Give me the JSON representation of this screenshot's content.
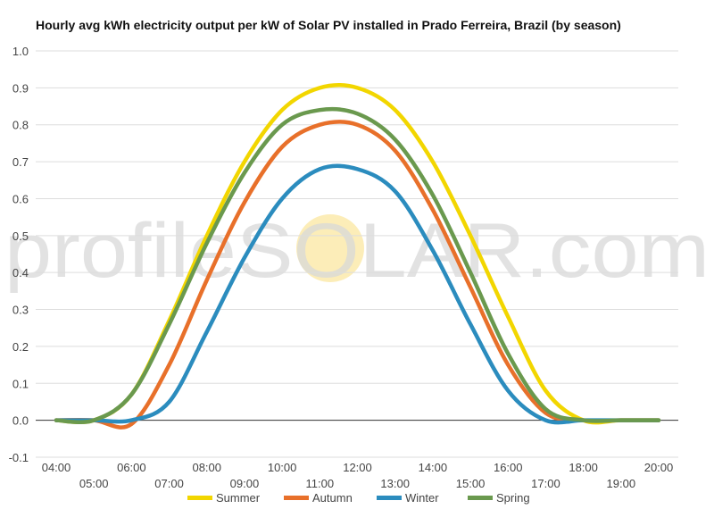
{
  "chart_data": {
    "type": "line",
    "title": "Hourly avg kWh electricity output per kW of Solar PV installed in Prado Ferreira, Brazil (by season)",
    "xlabel": "",
    "ylabel": "",
    "ylim": [
      -0.1,
      1.0
    ],
    "yticks": [
      "-0.1",
      "0.0",
      "0.1",
      "0.2",
      "0.3",
      "0.4",
      "0.5",
      "0.6",
      "0.7",
      "0.8",
      "0.9",
      "1.0"
    ],
    "categories": [
      "04:00",
      "05:00",
      "06:00",
      "07:00",
      "08:00",
      "09:00",
      "10:00",
      "11:00",
      "12:00",
      "13:00",
      "14:00",
      "15:00",
      "16:00",
      "17:00",
      "18:00",
      "19:00",
      "20:00"
    ],
    "grid": true,
    "legend": "bottom",
    "series": [
      {
        "name": "Summer",
        "color": "#f2d600",
        "values": [
          0.0,
          0.0,
          0.07,
          0.27,
          0.5,
          0.7,
          0.84,
          0.9,
          0.9,
          0.84,
          0.7,
          0.5,
          0.28,
          0.08,
          0.0,
          0.0,
          0.0
        ]
      },
      {
        "name": "Autumn",
        "color": "#e8702a",
        "values": [
          0.0,
          0.0,
          -0.01,
          0.15,
          0.38,
          0.59,
          0.74,
          0.8,
          0.8,
          0.73,
          0.57,
          0.36,
          0.15,
          0.02,
          0.0,
          0.0,
          0.0
        ]
      },
      {
        "name": "Winter",
        "color": "#2b8cbe",
        "values": [
          0.0,
          0.0,
          0.0,
          0.05,
          0.24,
          0.44,
          0.6,
          0.68,
          0.68,
          0.62,
          0.46,
          0.26,
          0.08,
          0.0,
          0.0,
          0.0,
          0.0
        ]
      },
      {
        "name": "Spring",
        "color": "#6a994e",
        "values": [
          0.0,
          0.0,
          0.07,
          0.26,
          0.48,
          0.67,
          0.8,
          0.84,
          0.83,
          0.76,
          0.61,
          0.4,
          0.18,
          0.03,
          0.0,
          0.0,
          0.0
        ]
      }
    ]
  },
  "watermark": {
    "text": "profileSOLAR.com",
    "sun_color": "#fbe8a6"
  }
}
